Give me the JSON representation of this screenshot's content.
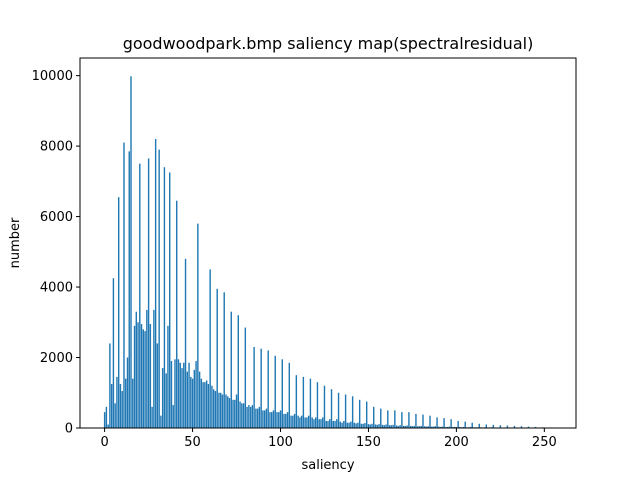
{
  "chart_data": {
    "type": "bar",
    "title": "goodwoodpark.bmp saliency map(spectralresidual)",
    "xlabel": "saliency",
    "ylabel": "number",
    "xlim": [
      -14,
      268
    ],
    "ylim": [
      0,
      10500
    ],
    "xticks": [
      0,
      50,
      100,
      150,
      200,
      250
    ],
    "yticks": [
      0,
      2000,
      4000,
      6000,
      8000,
      10000
    ],
    "bar_color": "#1f77b4",
    "grid": false,
    "series": [
      {
        "x": [
          0,
          1,
          2,
          3,
          4,
          5,
          6,
          7,
          8,
          9,
          10,
          11,
          12,
          13,
          14,
          15,
          16,
          17,
          18,
          19,
          20,
          21,
          22,
          23,
          24,
          25,
          26,
          27,
          28,
          29,
          30,
          31,
          32,
          33,
          34,
          35,
          36,
          37,
          38,
          39,
          40,
          41,
          42,
          43,
          44,
          45,
          46,
          47,
          48,
          49,
          50,
          51,
          52,
          53,
          54,
          55,
          56,
          57,
          58,
          59,
          60,
          61,
          62,
          63,
          64,
          65,
          66,
          67,
          68,
          69,
          70,
          71,
          72,
          73,
          74,
          75,
          76,
          77,
          78,
          79,
          80,
          81,
          82,
          83,
          84,
          85,
          86,
          87,
          88,
          89,
          90,
          91,
          92,
          93,
          94,
          95,
          96,
          97,
          98,
          99,
          100,
          101,
          102,
          103,
          104,
          105,
          106,
          107,
          108,
          109,
          110,
          111,
          112,
          113,
          114,
          115,
          116,
          117,
          118,
          119,
          120,
          121,
          122,
          123,
          124,
          125,
          126,
          127,
          128,
          129,
          130,
          131,
          132,
          133,
          134,
          135,
          136,
          137,
          138,
          139,
          140,
          141,
          142,
          143,
          144,
          145,
          146,
          147,
          148,
          149,
          150,
          151,
          152,
          153,
          154,
          155,
          156,
          157,
          158,
          159,
          160,
          161,
          162,
          163,
          164,
          165,
          166,
          167,
          168,
          169,
          170,
          171,
          172,
          173,
          174,
          175,
          176,
          177,
          178,
          179,
          180,
          181,
          182,
          183,
          184,
          185,
          186,
          187,
          188,
          189,
          190,
          191,
          192,
          193,
          194,
          195,
          196,
          197,
          198,
          199,
          200,
          201,
          202,
          203,
          204,
          205,
          206,
          207,
          208,
          209,
          210,
          211,
          212,
          213,
          214,
          215,
          216,
          217,
          218,
          219,
          220,
          221,
          222,
          223,
          224,
          225,
          226,
          227,
          228,
          229,
          230,
          231,
          232,
          233,
          234,
          235,
          236,
          237,
          238,
          239,
          240,
          241,
          242,
          243,
          244,
          245,
          246,
          247,
          248,
          249,
          250,
          251,
          252,
          253,
          254,
          255
        ],
        "values": [
          450,
          600,
          100,
          2400,
          1250,
          4250,
          700,
          1450,
          6550,
          1250,
          1050,
          8100,
          1400,
          2000,
          7850,
          9980,
          1400,
          2900,
          3300,
          3000,
          7500,
          2950,
          2800,
          2750,
          3350,
          7650,
          2950,
          600,
          3350,
          8200,
          2400,
          7900,
          350,
          1700,
          7400,
          1550,
          2900,
          7250,
          1900,
          650,
          1950,
          6450,
          1950,
          1850,
          1700,
          1850,
          4800,
          1600,
          1850,
          1450,
          1400,
          1650,
          1900,
          5800,
          1600,
          1400,
          1300,
          1300,
          1350,
          1250,
          4500,
          1200,
          1100,
          1050,
          3950,
          1000,
          1000,
          950,
          3850,
          950,
          900,
          850,
          3300,
          800,
          800,
          950,
          3200,
          750,
          700,
          700,
          2850,
          600,
          650,
          600,
          650,
          2300,
          550,
          550,
          600,
          2250,
          500,
          500,
          550,
          2200,
          450,
          450,
          500,
          2050,
          450,
          450,
          500,
          1950,
          400,
          400,
          450,
          1850,
          350,
          350,
          400,
          1500,
          350,
          300,
          350,
          1450,
          300,
          300,
          350,
          1400,
          300,
          250,
          300,
          1300,
          250,
          250,
          300,
          1200,
          200,
          200,
          250,
          1100,
          200,
          200,
          250,
          1000,
          180,
          150,
          200,
          950,
          150,
          150,
          180,
          900,
          150,
          130,
          150,
          800,
          120,
          120,
          140,
          750,
          110,
          100,
          120,
          600,
          100,
          90,
          110,
          550,
          90,
          80,
          100,
          500,
          80,
          80,
          90,
          500,
          70,
          60,
          80,
          450,
          60,
          60,
          70,
          450,
          60,
          50,
          60,
          400,
          50,
          50,
          60,
          380,
          50,
          40,
          50,
          350,
          40,
          40,
          50,
          300,
          40,
          30,
          40,
          280,
          30,
          30,
          40,
          250,
          30,
          30,
          30,
          200,
          30,
          20,
          30,
          180,
          20,
          20,
          30,
          150,
          20,
          20,
          20,
          120,
          20,
          15,
          20,
          100,
          15,
          15,
          20,
          90,
          15,
          10,
          15,
          80,
          10,
          10,
          15,
          70,
          10,
          10,
          10,
          60,
          10,
          8,
          10,
          50,
          8,
          8,
          10,
          40,
          8,
          5,
          8,
          30,
          5,
          5,
          5,
          20,
          5,
          5,
          5,
          15,
          5,
          5
        ]
      }
    ]
  }
}
